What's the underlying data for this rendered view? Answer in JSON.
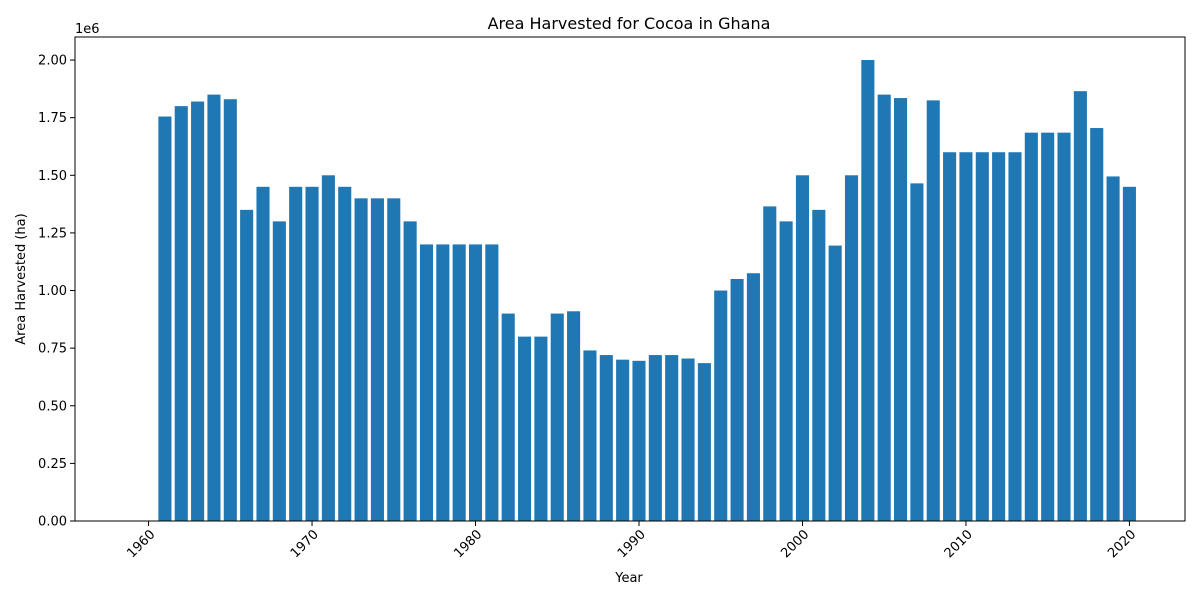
{
  "chart_data": {
    "type": "bar",
    "title": "Area Harvested for Cocoa in Ghana",
    "xlabel": "Year",
    "ylabel": "Area Harvested (ha)",
    "y_offset_label": "1e6",
    "xlim": [
      1955.5,
      2023.4
    ],
    "ylim": [
      0,
      2100000
    ],
    "x_ticks": [
      1960,
      1970,
      1980,
      1990,
      2000,
      2010,
      2020
    ],
    "y_ticks": [
      0,
      250000,
      500000,
      750000,
      1000000,
      1250000,
      1500000,
      1750000,
      2000000
    ],
    "y_tick_labels": [
      "0.00",
      "0.25",
      "0.50",
      "0.75",
      "1.00",
      "1.25",
      "1.50",
      "1.75",
      "2.00"
    ],
    "grid": false,
    "bar_color": "#1f77b4",
    "x": [
      1961,
      1962,
      1963,
      1964,
      1965,
      1966,
      1967,
      1968,
      1969,
      1970,
      1971,
      1972,
      1973,
      1974,
      1975,
      1976,
      1977,
      1978,
      1979,
      1980,
      1981,
      1982,
      1983,
      1984,
      1985,
      1986,
      1987,
      1988,
      1989,
      1990,
      1991,
      1992,
      1993,
      1994,
      1995,
      1996,
      1997,
      1998,
      1999,
      2000,
      2001,
      2002,
      2003,
      2004,
      2005,
      2006,
      2007,
      2008,
      2009,
      2010,
      2011,
      2012,
      2013,
      2014,
      2015,
      2016,
      2017,
      2018,
      2019,
      2020
    ],
    "values": [
      1755000,
      1800000,
      1820000,
      1850000,
      1830000,
      1350000,
      1450000,
      1300000,
      1450000,
      1450000,
      1500000,
      1450000,
      1400000,
      1400000,
      1400000,
      1300000,
      1200000,
      1200000,
      1200000,
      1200000,
      1200000,
      900000,
      800000,
      800000,
      900000,
      910000,
      740000,
      720000,
      700000,
      695000,
      720000,
      720000,
      705000,
      685000,
      1000000,
      1050000,
      1075000,
      1365000,
      1300000,
      1500000,
      1350000,
      1195000,
      1500000,
      2000000,
      1850000,
      1835000,
      1465000,
      1825000,
      1600000,
      1600000,
      1600000,
      1600000,
      1600000,
      1685000,
      1685000,
      1685000,
      1865000,
      1705000,
      1495000,
      1450000
    ]
  }
}
